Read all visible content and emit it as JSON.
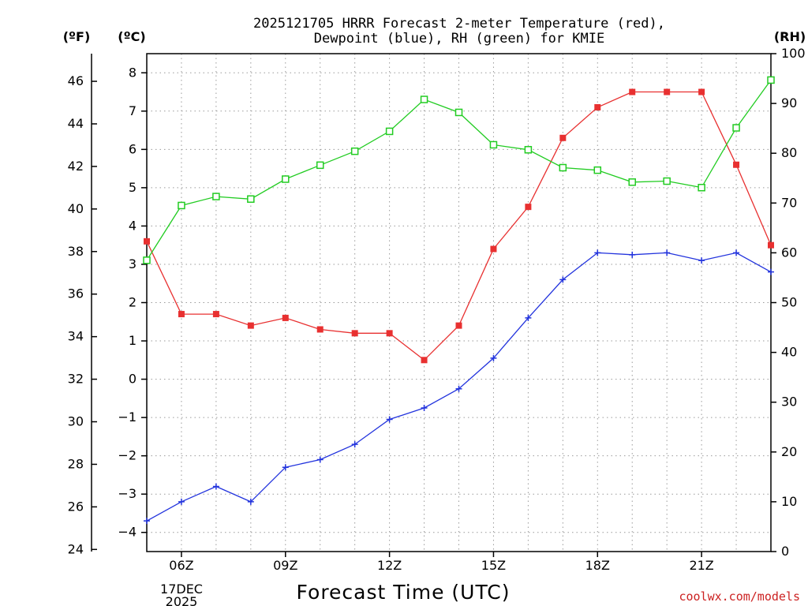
{
  "chart_data": {
    "type": "line",
    "title_line1": "2025121705 HRRR Forecast 2-meter Temperature (red),",
    "title_line2": "Dewpoint (blue), RH (green) for KMIE",
    "xlabel": "Forecast Time (UTC)",
    "credit": "coolwx.com/models",
    "date_label_line1": "17DEC",
    "date_label_line2": "2025",
    "unit_f": "(ºF)",
    "unit_c": "(ºC)",
    "unit_rh": "(RH)",
    "x_hours": [
      5,
      6,
      7,
      8,
      9,
      10,
      11,
      12,
      13,
      14,
      15,
      16,
      17,
      18,
      19,
      20,
      21,
      22,
      23
    ],
    "xlim": [
      5,
      23
    ],
    "x_tick_hours": [
      6,
      9,
      12,
      15,
      18,
      21
    ],
    "x_tick_labels": [
      "06Z",
      "09Z",
      "12Z",
      "15Z",
      "18Z",
      "21Z"
    ],
    "ylim_celsius": [
      -4.5,
      8.5
    ],
    "ylim_rh": [
      0,
      100
    ],
    "celsius_ticks": [
      -4,
      -3,
      -2,
      -1,
      0,
      1,
      2,
      3,
      4,
      5,
      6,
      7,
      8
    ],
    "fahrenheit_ticks": [
      24,
      26,
      28,
      30,
      32,
      34,
      36,
      38,
      40,
      42,
      44,
      46
    ],
    "rh_ticks": [
      0,
      10,
      20,
      30,
      40,
      50,
      60,
      70,
      80,
      90,
      100
    ],
    "series": [
      {
        "name": "Temperature",
        "axis": "celsius",
        "color": "#e83030",
        "marker": "filled-square",
        "values": [
          3.6,
          1.7,
          1.7,
          1.4,
          1.6,
          1.3,
          1.2,
          1.2,
          0.5,
          1.4,
          3.4,
          4.5,
          6.3,
          7.1,
          7.5,
          7.5,
          7.5,
          5.6,
          3.5
        ]
      },
      {
        "name": "Dewpoint",
        "axis": "celsius",
        "color": "#2233dd",
        "marker": "plus",
        "values": [
          -3.7,
          -3.2,
          -2.8,
          -3.2,
          -2.3,
          -2.1,
          -1.7,
          -1.05,
          -0.75,
          -0.25,
          0.55,
          1.6,
          2.6,
          3.3,
          3.25,
          3.3,
          3.1,
          3.3,
          2.8
        ]
      },
      {
        "name": "RH",
        "axis": "rh",
        "color": "#22cc22",
        "marker": "open-square",
        "values": [
          58.5,
          69.5,
          71.3,
          70.8,
          74.8,
          77.6,
          80.4,
          84.4,
          90.8,
          88.2,
          81.7,
          80.7,
          77.1,
          76.6,
          74.2,
          74.4,
          73.1,
          85.1,
          94.7
        ]
      }
    ]
  }
}
